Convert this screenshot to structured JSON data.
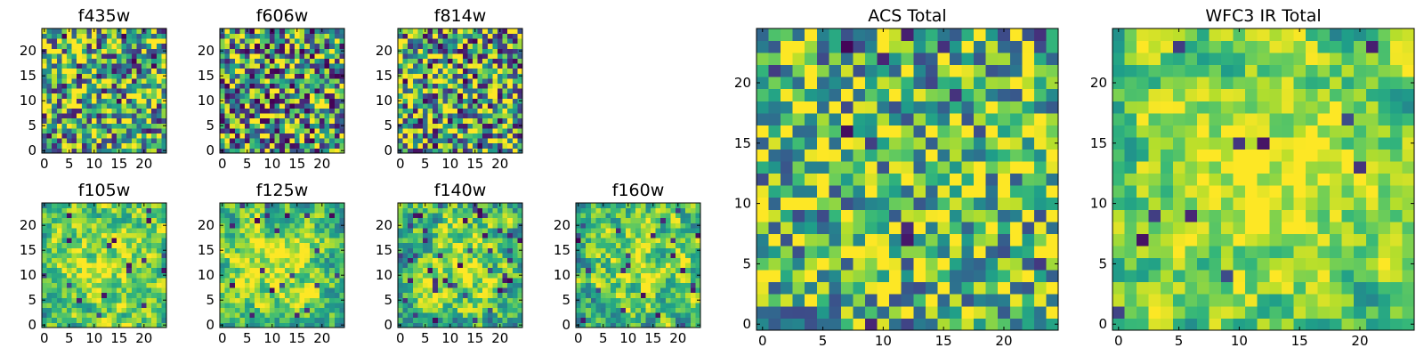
{
  "chart_data": [
    {
      "id": "f435w",
      "type": "heatmap",
      "title": "f435w",
      "nx": 25,
      "ny": 25,
      "seed": 11,
      "smooth": 0,
      "bias": 0.0,
      "contrast": 1.1,
      "dark_fraction": 0.05,
      "xticks": [
        "0",
        "5",
        "10",
        "15",
        "20"
      ],
      "yticks": [
        "0",
        "5",
        "10",
        "15",
        "20"
      ],
      "xlim": [
        -0.5,
        24.5
      ],
      "ylim": [
        -0.5,
        24.5
      ],
      "colormap": "viridis"
    },
    {
      "id": "f606w",
      "type": "heatmap",
      "title": "f606w",
      "nx": 25,
      "ny": 25,
      "seed": 23,
      "smooth": 0,
      "bias": -0.05,
      "contrast": 1.2,
      "dark_fraction": 0.08,
      "xticks": [
        "0",
        "5",
        "10",
        "15",
        "20"
      ],
      "yticks": [
        "0",
        "5",
        "10",
        "15",
        "20"
      ],
      "xlim": [
        -0.5,
        24.5
      ],
      "ylim": [
        -0.5,
        24.5
      ],
      "colormap": "viridis"
    },
    {
      "id": "f814w",
      "type": "heatmap",
      "title": "f814w",
      "nx": 25,
      "ny": 25,
      "seed": 37,
      "smooth": 0,
      "bias": -0.02,
      "contrast": 1.2,
      "dark_fraction": 0.06,
      "xticks": [
        "0",
        "5",
        "10",
        "15",
        "20"
      ],
      "yticks": [
        "0",
        "5",
        "10",
        "15",
        "20"
      ],
      "xlim": [
        -0.5,
        24.5
      ],
      "ylim": [
        -0.5,
        24.5
      ],
      "colormap": "viridis"
    },
    {
      "id": "f105w",
      "type": "heatmap",
      "title": "f105w",
      "nx": 25,
      "ny": 25,
      "seed": 41,
      "smooth": 1,
      "bias": 0.05,
      "contrast": 1.0,
      "dark_fraction": 0.02,
      "xticks": [
        "0",
        "5",
        "10",
        "15",
        "20"
      ],
      "yticks": [
        "0",
        "5",
        "10",
        "15",
        "20"
      ],
      "xlim": [
        -0.5,
        24.5
      ],
      "ylim": [
        -0.5,
        24.5
      ],
      "colormap": "viridis"
    },
    {
      "id": "f125w",
      "type": "heatmap",
      "title": "f125w",
      "nx": 25,
      "ny": 25,
      "seed": 53,
      "smooth": 1,
      "bias": 0.05,
      "contrast": 1.0,
      "dark_fraction": 0.04,
      "xticks": [
        "0",
        "5",
        "10",
        "15",
        "20"
      ],
      "yticks": [
        "0",
        "5",
        "10",
        "15",
        "20"
      ],
      "xlim": [
        -0.5,
        24.5
      ],
      "ylim": [
        -0.5,
        24.5
      ],
      "colormap": "viridis"
    },
    {
      "id": "f140w",
      "type": "heatmap",
      "title": "f140w",
      "nx": 25,
      "ny": 25,
      "seed": 67,
      "smooth": 1,
      "bias": 0.0,
      "contrast": 1.1,
      "dark_fraction": 0.05,
      "xticks": [
        "0",
        "5",
        "10",
        "15",
        "20"
      ],
      "yticks": [
        "0",
        "5",
        "10",
        "15",
        "20"
      ],
      "xlim": [
        -0.5,
        24.5
      ],
      "ylim": [
        -0.5,
        24.5
      ],
      "colormap": "viridis"
    },
    {
      "id": "f160w",
      "type": "heatmap",
      "title": "f160w",
      "nx": 25,
      "ny": 25,
      "seed": 79,
      "smooth": 1,
      "bias": 0.0,
      "contrast": 1.1,
      "dark_fraction": 0.05,
      "xticks": [
        "0",
        "5",
        "10",
        "15",
        "20"
      ],
      "yticks": [
        "0",
        "5",
        "10",
        "15",
        "20"
      ],
      "xlim": [
        -0.5,
        24.5
      ],
      "ylim": [
        -0.5,
        24.5
      ],
      "colormap": "viridis"
    },
    {
      "id": "acs-total",
      "type": "heatmap",
      "title": "ACS Total",
      "nx": 25,
      "ny": 25,
      "seed": 97,
      "smooth": 0,
      "bias": 0.05,
      "contrast": 0.9,
      "dark_fraction": 0.03,
      "xticks": [
        "0",
        "5",
        "10",
        "15",
        "20"
      ],
      "yticks": [
        "0",
        "5",
        "10",
        "15",
        "20"
      ],
      "xlim": [
        -0.5,
        24.5
      ],
      "ylim": [
        -0.5,
        24.5
      ],
      "colormap": "viridis"
    },
    {
      "id": "wfc3-ir-total",
      "type": "heatmap",
      "title": "WFC3 IR Total",
      "nx": 25,
      "ny": 25,
      "seed": 113,
      "smooth": 1,
      "bias": 0.1,
      "contrast": 0.9,
      "dark_fraction": 0.02,
      "xticks": [
        "0",
        "5",
        "10",
        "15",
        "20"
      ],
      "yticks": [
        "0",
        "5",
        "10",
        "15",
        "20"
      ],
      "xlim": [
        -0.5,
        24.5
      ],
      "ylim": [
        -0.5,
        24.5
      ],
      "colormap": "viridis"
    }
  ]
}
